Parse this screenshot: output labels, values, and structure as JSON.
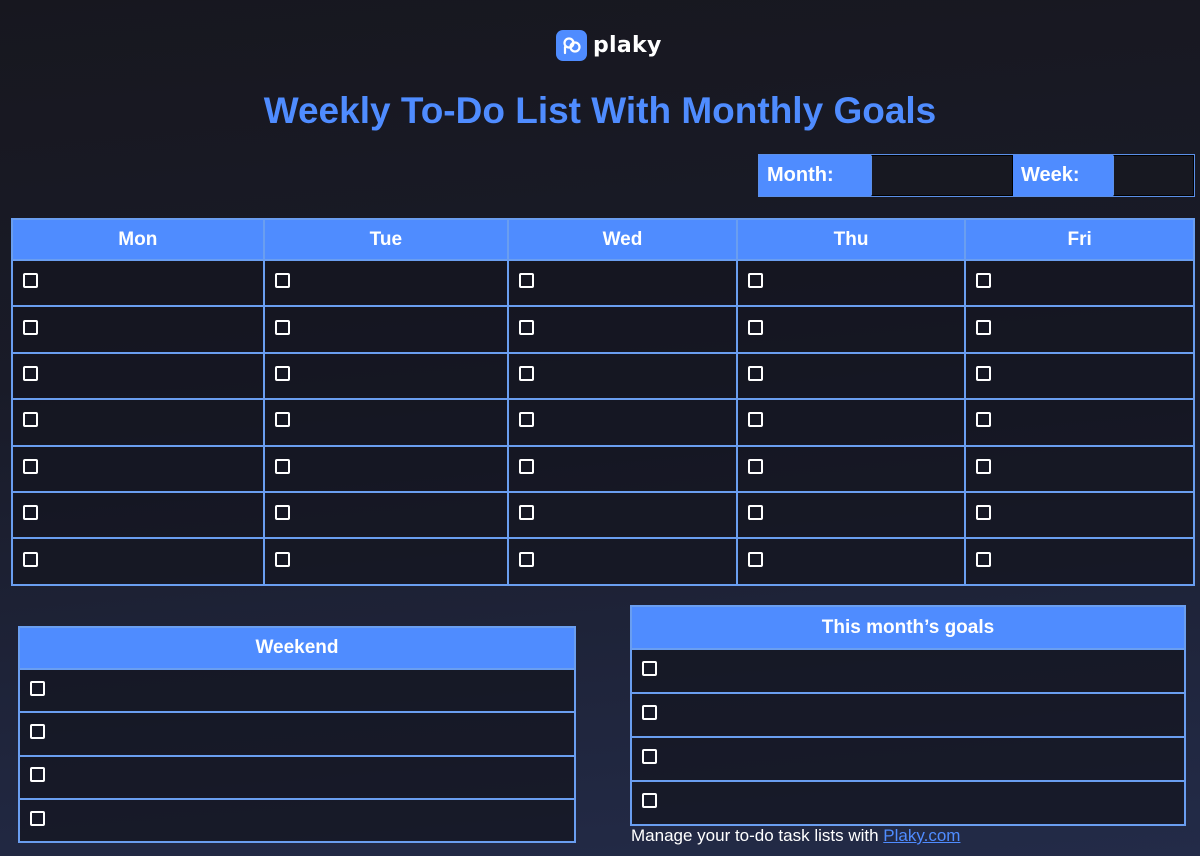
{
  "brand": {
    "name": "plaky",
    "color": "#4f8cff",
    "icon": "plaky-logo-icon"
  },
  "title": "Weekly To-Do List With Monthly Goals",
  "month_week": {
    "month_label": "Month:",
    "month_value": "",
    "week_label": "Week:",
    "week_value": ""
  },
  "weekly": {
    "columns": [
      "Mon",
      "Tue",
      "Wed",
      "Thu",
      "Fri"
    ],
    "row_count": 7,
    "checked": []
  },
  "weekend": {
    "header": "Weekend",
    "row_count": 4,
    "checked": []
  },
  "goals": {
    "header": "This month’s goals",
    "row_count": 4,
    "checked": []
  },
  "footer": {
    "text": "Manage your to-do task lists with ",
    "link": "Plaky.com"
  }
}
